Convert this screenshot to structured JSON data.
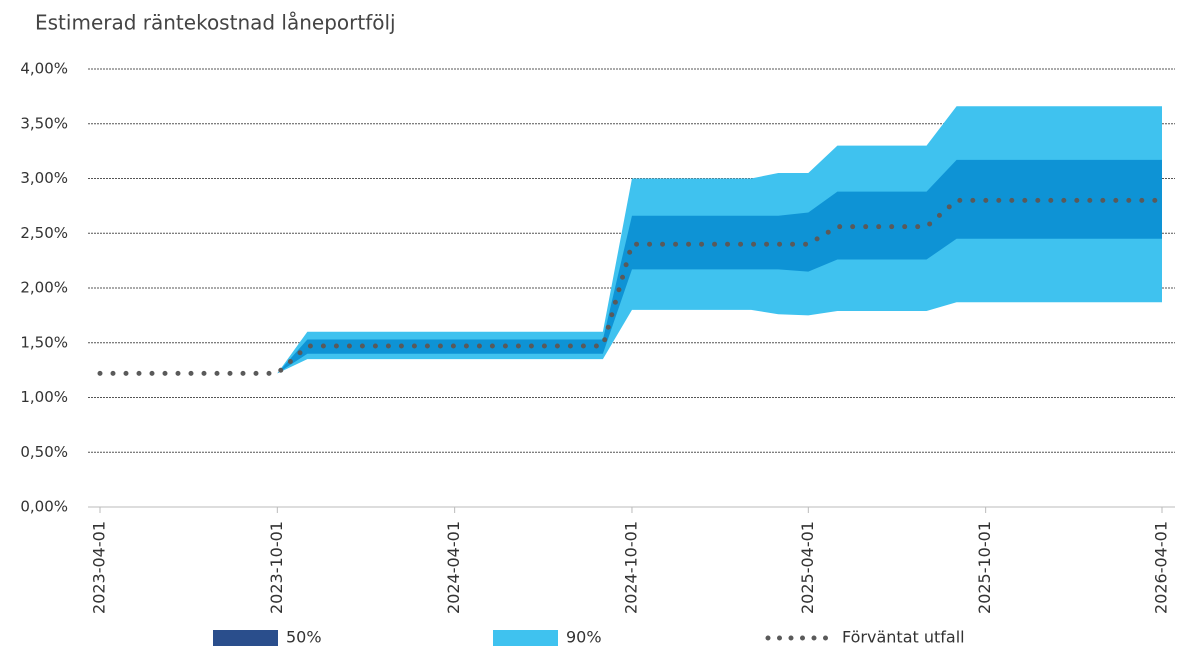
{
  "chart_data": {
    "type": "line",
    "title": "Estimerad räntekostnad låneportfölj",
    "x": [
      "2023-04-01",
      "2023-05-01",
      "2023-06-01",
      "2023-07-01",
      "2023-08-01",
      "2023-09-01",
      "2023-10-01",
      "2023-11-01",
      "2023-12-01",
      "2024-01-01",
      "2024-02-01",
      "2024-03-01",
      "2024-04-01",
      "2024-05-01",
      "2024-06-01",
      "2024-07-01",
      "2024-08-01",
      "2024-09-01",
      "2024-10-01",
      "2024-11-01",
      "2024-12-01",
      "2025-01-01",
      "2025-02-01",
      "2025-03-01",
      "2025-04-01",
      "2025-05-01",
      "2025-06-01",
      "2025-07-01",
      "2025-08-01",
      "2025-09-01",
      "2025-10-01",
      "2025-11-01",
      "2025-12-01",
      "2026-01-01",
      "2026-02-01",
      "2026-03-01",
      "2026-04-01"
    ],
    "series": [
      {
        "name": "50%",
        "kind": "band",
        "color": "#2a4e8c",
        "fill": "#0e93d5",
        "lower": [
          1.22,
          1.22,
          1.22,
          1.22,
          1.22,
          1.22,
          1.22,
          1.4,
          1.4,
          1.4,
          1.4,
          1.4,
          1.4,
          1.4,
          1.4,
          1.4,
          1.4,
          1.4,
          2.17,
          2.17,
          2.17,
          2.17,
          2.17,
          2.17,
          2.15,
          2.26,
          2.26,
          2.26,
          2.26,
          2.45,
          2.45,
          2.45,
          2.45,
          2.45,
          2.45,
          2.45,
          2.45
        ],
        "upper": [
          1.22,
          1.22,
          1.22,
          1.22,
          1.22,
          1.22,
          1.22,
          1.53,
          1.53,
          1.53,
          1.53,
          1.53,
          1.53,
          1.53,
          1.53,
          1.53,
          1.53,
          1.53,
          2.66,
          2.66,
          2.66,
          2.66,
          2.66,
          2.66,
          2.69,
          2.88,
          2.88,
          2.88,
          2.88,
          3.17,
          3.17,
          3.17,
          3.17,
          3.17,
          3.17,
          3.17,
          3.17
        ]
      },
      {
        "name": "90%",
        "kind": "band",
        "color": "#3fc2ef",
        "fill": "#3fc2ef",
        "lower": [
          1.22,
          1.22,
          1.22,
          1.22,
          1.22,
          1.22,
          1.22,
          1.35,
          1.35,
          1.35,
          1.35,
          1.35,
          1.35,
          1.35,
          1.35,
          1.35,
          1.35,
          1.35,
          1.8,
          1.8,
          1.8,
          1.8,
          1.8,
          1.76,
          1.75,
          1.79,
          1.79,
          1.79,
          1.79,
          1.87,
          1.87,
          1.87,
          1.87,
          1.87,
          1.87,
          1.87,
          1.87
        ],
        "upper": [
          1.22,
          1.22,
          1.22,
          1.22,
          1.22,
          1.22,
          1.22,
          1.6,
          1.6,
          1.6,
          1.6,
          1.6,
          1.6,
          1.6,
          1.6,
          1.6,
          1.6,
          1.6,
          3.0,
          3.0,
          3.0,
          3.0,
          3.0,
          3.05,
          3.05,
          3.3,
          3.3,
          3.3,
          3.3,
          3.66,
          3.66,
          3.66,
          3.66,
          3.66,
          3.66,
          3.66,
          3.66
        ]
      },
      {
        "name": "Förväntat utfall",
        "kind": "line",
        "color": "#5a5a5a",
        "values": [
          1.22,
          1.22,
          1.22,
          1.22,
          1.22,
          1.22,
          1.22,
          1.47,
          1.47,
          1.47,
          1.47,
          1.47,
          1.47,
          1.47,
          1.47,
          1.47,
          1.47,
          1.47,
          2.4,
          2.4,
          2.4,
          2.4,
          2.4,
          2.4,
          2.4,
          2.56,
          2.56,
          2.56,
          2.56,
          2.8,
          2.8,
          2.8,
          2.8,
          2.8,
          2.8,
          2.8,
          2.8
        ]
      }
    ],
    "xlim": [
      "2023-04-01",
      "2026-04-01"
    ],
    "xticks": [
      "2023-04-01",
      "2023-10-01",
      "2024-04-01",
      "2024-10-01",
      "2025-04-01",
      "2025-10-01",
      "2026-04-01"
    ],
    "ylim": [
      0,
      4
    ],
    "yticks": [
      {
        "value": 0,
        "label": "0,00%"
      },
      {
        "value": 0.5,
        "label": "0,50%"
      },
      {
        "value": 1,
        "label": "1,00%"
      },
      {
        "value": 1.5,
        "label": "1,50%"
      },
      {
        "value": 2,
        "label": "2,00%"
      },
      {
        "value": 2.5,
        "label": "2,50%"
      },
      {
        "value": 3,
        "label": "3,00%"
      },
      {
        "value": 3.5,
        "label": "3,50%"
      },
      {
        "value": 4,
        "label": "4,00%"
      }
    ],
    "grid": true,
    "legend": "bottom"
  }
}
